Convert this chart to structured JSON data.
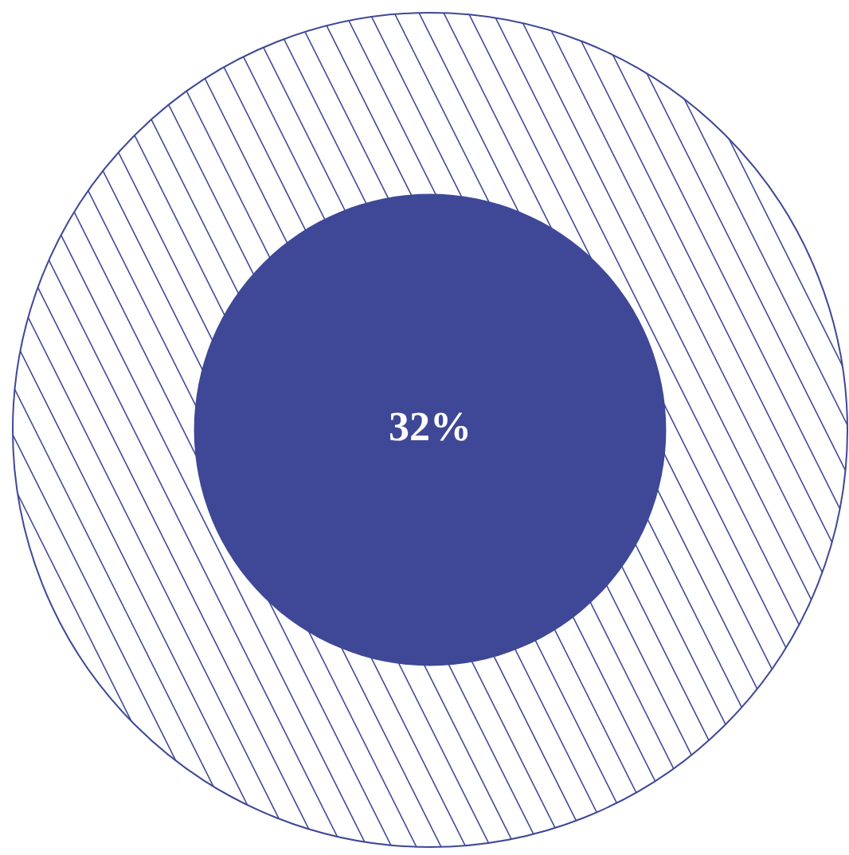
{
  "chart_data": {
    "type": "other",
    "values": [
      32
    ],
    "value_labels": [
      "32%"
    ],
    "color": "#3f4896"
  }
}
